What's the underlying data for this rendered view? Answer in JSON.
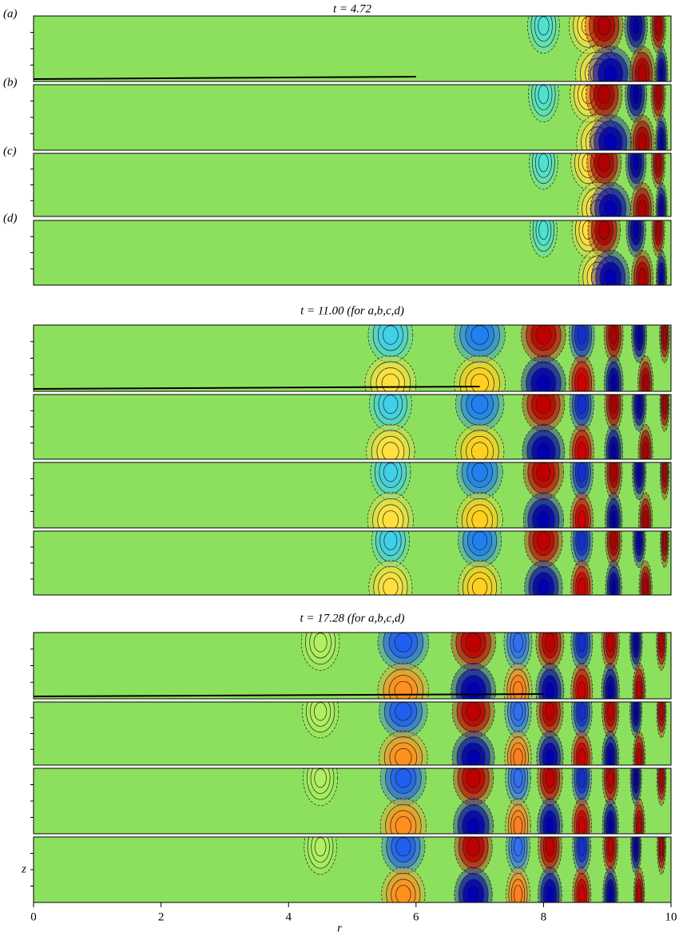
{
  "figure": {
    "titles": [
      "t = 4.72",
      "t = 11.00 (for a,b,c,d)",
      "t = 17.28 (for a,b,c,d)"
    ],
    "panel_labels": [
      "(a)",
      "(b)",
      "(c)",
      "(d)"
    ],
    "x_axis": {
      "label": "r",
      "lim": [
        0,
        10
      ],
      "ticks": [
        0,
        2,
        4,
        6,
        8,
        10
      ]
    },
    "y_axis": {
      "label": "z"
    }
  }
}
